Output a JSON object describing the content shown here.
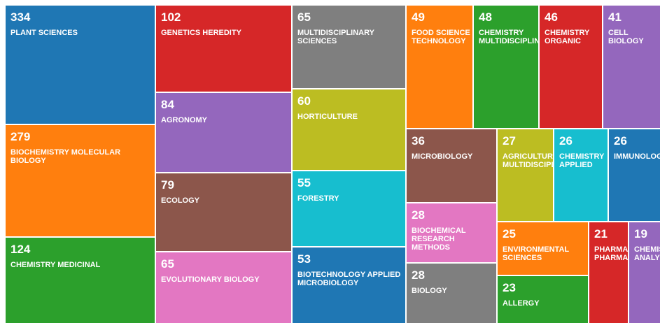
{
  "chart_data": {
    "type": "treemap",
    "colors": {
      "blue": "#1f77b4",
      "orange": "#ff7f0e",
      "green": "#2ca02c",
      "red": "#d62728",
      "purple": "#9467bd",
      "brown": "#8c564b",
      "pink": "#e377c2",
      "gray": "#7f7f7f",
      "olive": "#bcbd22",
      "cyan": "#17becf"
    },
    "items": [
      {
        "label": "PLANT SCIENCES",
        "value": 334,
        "color": "#1f77b4"
      },
      {
        "label": "BIOCHEMISTRY MOLECULAR BIOLOGY",
        "value": 279,
        "color": "#ff7f0e"
      },
      {
        "label": "CHEMISTRY MEDICINAL",
        "value": 124,
        "color": "#2ca02c"
      },
      {
        "label": "GENETICS HEREDITY",
        "value": 102,
        "color": "#d62728"
      },
      {
        "label": "AGRONOMY",
        "value": 84,
        "color": "#9467bd"
      },
      {
        "label": "ECOLOGY",
        "value": 79,
        "color": "#8c564b"
      },
      {
        "label": "EVOLUTIONARY BIOLOGY",
        "value": 65,
        "color": "#e377c2"
      },
      {
        "label": "MULTIDISCIPLINARY SCIENCES",
        "value": 65,
        "color": "#7f7f7f"
      },
      {
        "label": "HORTICULTURE",
        "value": 60,
        "color": "#bcbd22"
      },
      {
        "label": "FORESTRY",
        "value": 55,
        "color": "#17becf"
      },
      {
        "label": "BIOTECHNOLOGY APPLIED MICROBIOLOGY",
        "value": 53,
        "color": "#1f77b4"
      },
      {
        "label": "FOOD SCIENCE TECHNOLOGY",
        "value": 49,
        "color": "#ff7f0e"
      },
      {
        "label": "CHEMISTRY MULTIDISCIPLINARY",
        "value": 48,
        "color": "#2ca02c"
      },
      {
        "label": "CHEMISTRY ORGANIC",
        "value": 46,
        "color": "#d62728"
      },
      {
        "label": "CELL BIOLOGY",
        "value": 41,
        "color": "#9467bd"
      },
      {
        "label": "MICROBIOLOGY",
        "value": 36,
        "color": "#8c564b"
      },
      {
        "label": "BIOCHEMICAL RESEARCH METHODS",
        "value": 28,
        "color": "#e377c2"
      },
      {
        "label": "BIOLOGY",
        "value": 28,
        "color": "#7f7f7f"
      },
      {
        "label": "AGRICULTURE MULTIDISCIPLINARY",
        "value": 27,
        "color": "#bcbd22"
      },
      {
        "label": "CHEMISTRY APPLIED",
        "value": 26,
        "color": "#17becf"
      },
      {
        "label": "IMMUNOLOGY",
        "value": 26,
        "color": "#1f77b4"
      },
      {
        "label": "ENVIRONMENTAL SCIENCES",
        "value": 25,
        "color": "#ff7f0e"
      },
      {
        "label": "ALLERGY",
        "value": 23,
        "color": "#2ca02c"
      },
      {
        "label": "PHARMACOLOGY PHARMACY",
        "value": 21,
        "color": "#d62728"
      },
      {
        "label": "CHEMISTRY ANALYTICAL",
        "value": 19,
        "color": "#9467bd"
      }
    ]
  }
}
